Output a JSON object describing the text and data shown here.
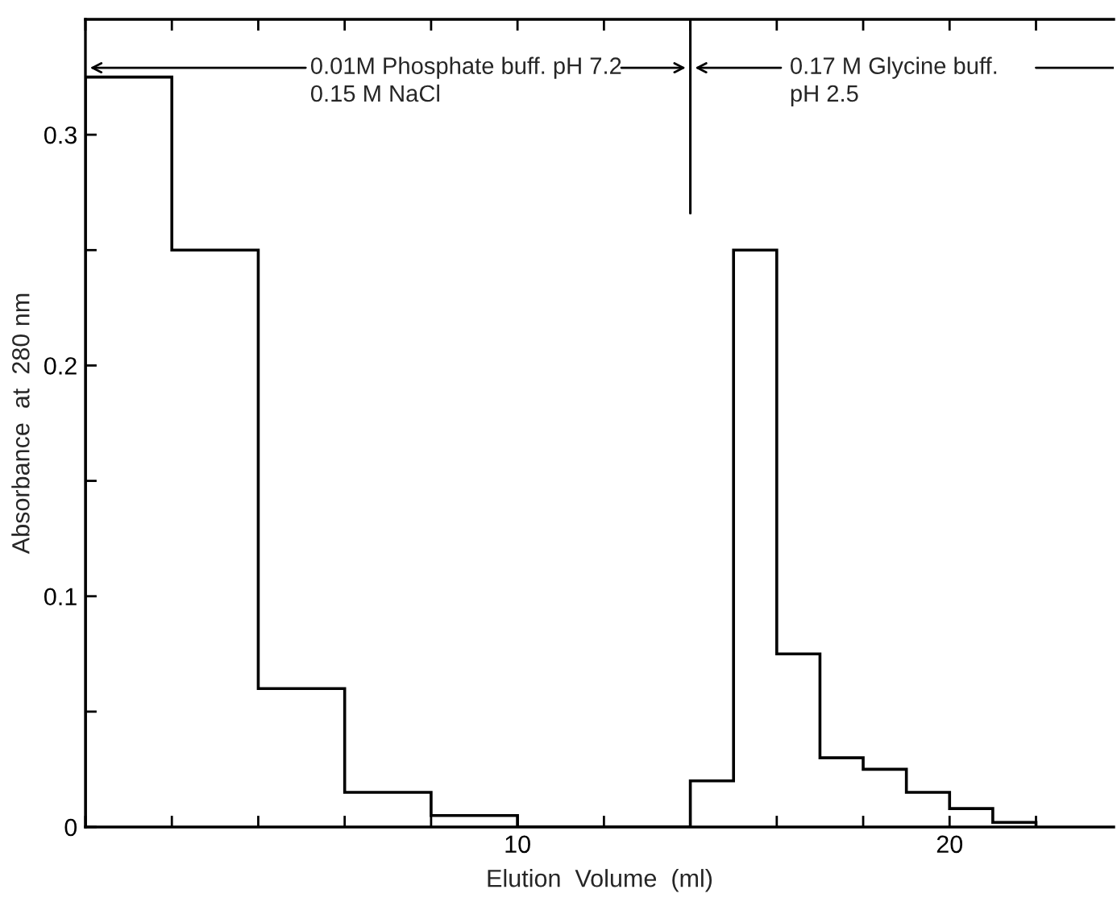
{
  "chart_data": {
    "type": "histogram",
    "xlabel": "Elution  Volume  (ml)",
    "ylabel": "Absorbance  at  280 nm",
    "bins": [
      0,
      2,
      4,
      6,
      8,
      10,
      14,
      15,
      16,
      17,
      18,
      19,
      20,
      21,
      22
    ],
    "values": [
      0.325,
      0.25,
      0.06,
      0.015,
      0.005,
      0,
      0.02,
      0.25,
      0.075,
      0.03,
      0.025,
      0.015,
      0.008,
      0.002
    ],
    "color": "#000000",
    "xlim": [
      0,
      23.8
    ],
    "ylim": [
      0,
      0.35
    ],
    "xticks": [
      {
        "value": 0,
        "label": null
      },
      {
        "value": 2,
        "label": null
      },
      {
        "value": 4,
        "label": null
      },
      {
        "value": 6,
        "label": null
      },
      {
        "value": 8,
        "label": null
      },
      10,
      {
        "value": 12,
        "label": null
      },
      {
        "value": 14,
        "label": null
      },
      {
        "value": 16,
        "label": null
      },
      {
        "value": 18,
        "label": null
      },
      20,
      {
        "value": 22,
        "label": null
      }
    ],
    "yticks": [
      0,
      {
        "value": 0.05,
        "label": null
      },
      0.1,
      {
        "value": 0.15,
        "label": null
      },
      0.2,
      {
        "value": 0.25,
        "label": null
      },
      0.3
    ],
    "ref_lines": [
      {
        "axis": "x",
        "value": 14,
        "color": "#000000"
      }
    ],
    "annotations": [
      "0.01M Phosphate buff. pH 7.2",
      "0.15 M NaCl",
      "0.17 M Glycine buff.",
      "pH 2.5"
    ],
    "grid": false,
    "legend": false
  }
}
